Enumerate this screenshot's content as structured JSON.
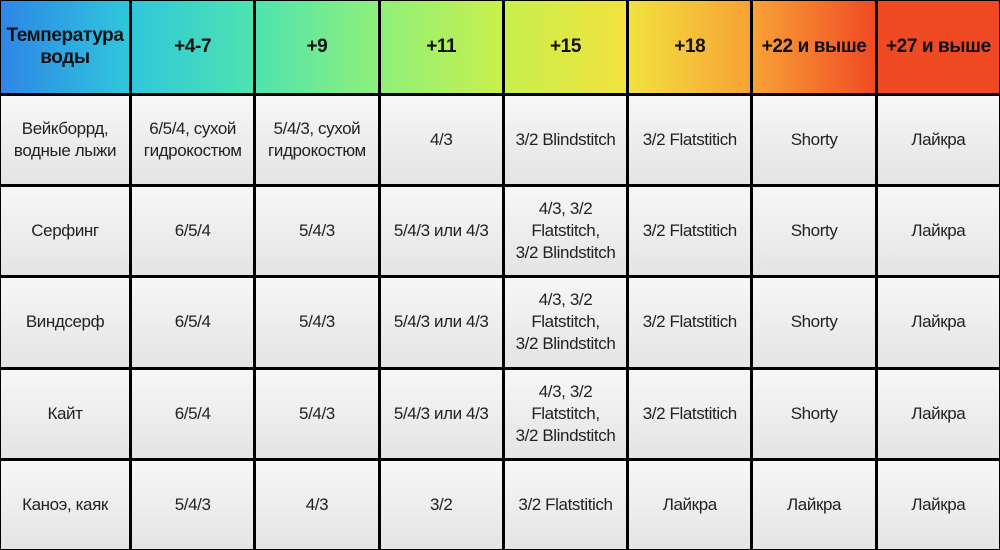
{
  "table": {
    "header": [
      "Температура\nводы",
      "+4-7",
      "+9",
      "+11",
      "+15",
      "+18",
      "+22 и выше",
      "+27 и выше"
    ],
    "rows": [
      [
        "Вейкборрд,\nводные лыжи",
        "6/5/4, сухой\nгидрокостюм",
        "5/4/3, сухой\nгидрокостюм",
        "4/3",
        "3/2 Blindstitch",
        "3/2 Flatstitich",
        "Shorty",
        "Лайкра"
      ],
      [
        "Серфинг",
        "6/5/4",
        "5/4/3",
        "5/4/3 или 4/3",
        "4/3, 3/2 Flatstitch,\n3/2 Blindstitch",
        "3/2 Flatstitich",
        "Shorty",
        "Лайкра"
      ],
      [
        "Виндсерф",
        "6/5/4",
        "5/4/3",
        "5/4/3 или 4/3",
        "4/3, 3/2 Flatstitch,\n3/2 Blindstitch",
        "3/2 Flatstitich",
        "Shorty",
        "Лайкра"
      ],
      [
        "Кайт",
        "6/5/4",
        "5/4/3",
        "5/4/3 или 4/3",
        "4/3, 3/2 Flatstitch,\n3/2 Blindstitch",
        "3/2 Flatstitich",
        "Shorty",
        "Лайкра"
      ],
      [
        "Каноэ, каяк",
        "5/4/3",
        "4/3",
        "3/2",
        "3/2 Flatstitich",
        "Лайкра",
        "Лайкра",
        "Лайкра"
      ]
    ]
  }
}
